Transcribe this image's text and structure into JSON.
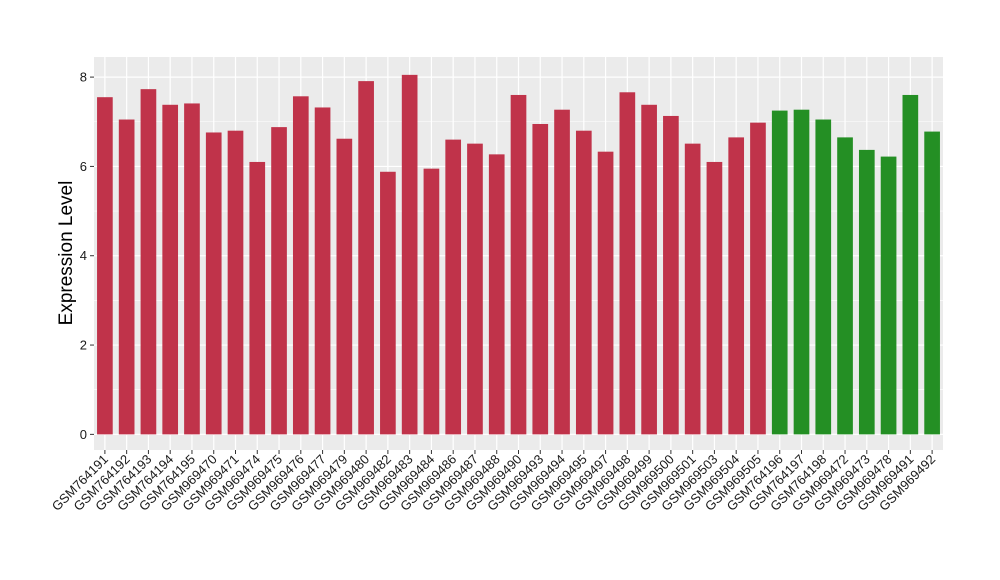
{
  "chart_data": {
    "type": "bar",
    "title": "",
    "xlabel": "",
    "ylabel": "Expression Level",
    "ylim": [
      -0.35,
      8.45
    ],
    "yticks": [
      0,
      2,
      4,
      6,
      8
    ],
    "grid": true,
    "legend": "none",
    "colors": {
      "group_a": "#c0334a",
      "group_b": "#248f24",
      "panel": "#ebebeb",
      "grid": "#ffffff"
    },
    "categories": [
      "GSM764191",
      "GSM764192",
      "GSM764193",
      "GSM764194",
      "GSM764195",
      "GSM969470",
      "GSM969471",
      "GSM969474",
      "GSM969475",
      "GSM969476",
      "GSM969477",
      "GSM969479",
      "GSM969480",
      "GSM969482",
      "GSM969483",
      "GSM969484",
      "GSM969486",
      "GSM969487",
      "GSM969488",
      "GSM969490",
      "GSM969493",
      "GSM969494",
      "GSM969495",
      "GSM969497",
      "GSM969498",
      "GSM969499",
      "GSM969500",
      "GSM969501",
      "GSM969503",
      "GSM969504",
      "GSM969505",
      "GSM764196",
      "GSM764197",
      "GSM764198",
      "GSM969472",
      "GSM969473",
      "GSM969478",
      "GSM969491",
      "GSM969492"
    ],
    "values": [
      7.55,
      7.05,
      7.73,
      7.38,
      7.41,
      6.76,
      6.8,
      6.1,
      6.88,
      7.57,
      7.32,
      6.62,
      7.91,
      5.88,
      8.05,
      5.95,
      6.6,
      6.51,
      6.27,
      7.6,
      6.95,
      7.27,
      6.8,
      6.33,
      7.66,
      7.38,
      7.13,
      6.51,
      6.1,
      6.65,
      6.98,
      7.25,
      7.27,
      7.05,
      6.65,
      6.37,
      6.22,
      7.6,
      6.78
    ],
    "groups": [
      "a",
      "a",
      "a",
      "a",
      "a",
      "a",
      "a",
      "a",
      "a",
      "a",
      "a",
      "a",
      "a",
      "a",
      "a",
      "a",
      "a",
      "a",
      "a",
      "a",
      "a",
      "a",
      "a",
      "a",
      "a",
      "a",
      "a",
      "a",
      "a",
      "a",
      "a",
      "b",
      "b",
      "b",
      "b",
      "b",
      "b",
      "b",
      "b"
    ]
  }
}
